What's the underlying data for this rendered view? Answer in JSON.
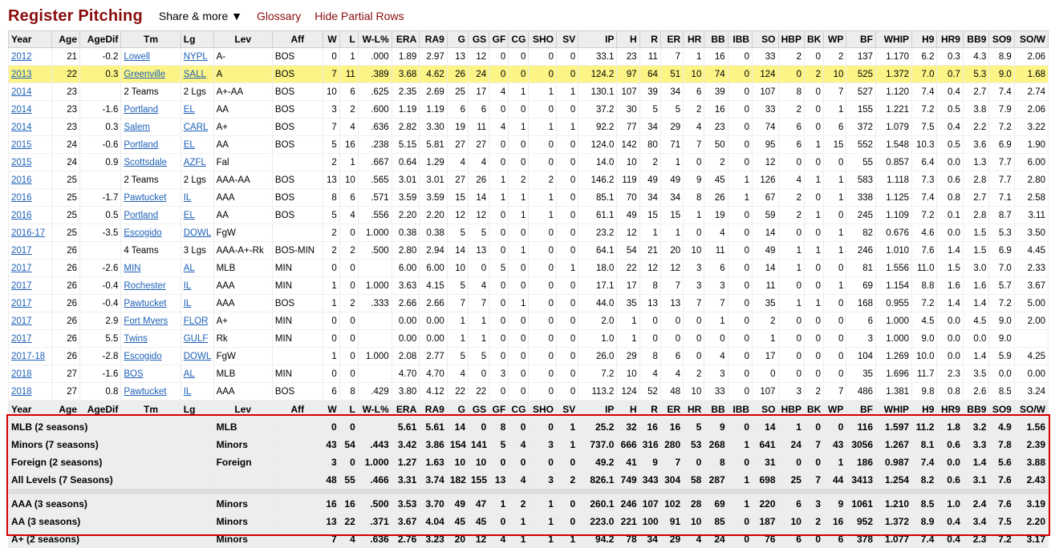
{
  "header": {
    "title": "Register Pitching",
    "share": "Share & more ▼",
    "glossary": "Glossary",
    "hide_partial": "Hide Partial Rows"
  },
  "columns": [
    "Year",
    "Age",
    "AgeDif",
    "Tm",
    "Lg",
    "Lev",
    "Aff",
    "W",
    "L",
    "W-L%",
    "ERA",
    "RA9",
    "G",
    "GS",
    "GF",
    "CG",
    "SHO",
    "SV",
    "IP",
    "H",
    "R",
    "ER",
    "HR",
    "BB",
    "IBB",
    "SO",
    "HBP",
    "BK",
    "WP",
    "BF",
    "WHIP",
    "H9",
    "HR9",
    "BB9",
    "SO9",
    "SO/W"
  ],
  "rows": [
    [
      "2012",
      "21",
      "-0.2",
      "Lowell",
      "NYPL",
      "A-",
      "BOS",
      "0",
      "1",
      ".000",
      "1.89",
      "2.97",
      "13",
      "12",
      "0",
      "0",
      "0",
      "0",
      "33.1",
      "23",
      "11",
      "7",
      "1",
      "16",
      "0",
      "33",
      "2",
      "0",
      "2",
      "137",
      "1.170",
      "6.2",
      "0.3",
      "4.3",
      "8.9",
      "2.06"
    ],
    [
      "2013",
      "22",
      "0.3",
      "Greenville",
      "SALL",
      "A",
      "BOS",
      "7",
      "11",
      ".389",
      "3.68",
      "4.62",
      "26",
      "24",
      "0",
      "0",
      "0",
      "0",
      "124.2",
      "97",
      "64",
      "51",
      "10",
      "74",
      "0",
      "124",
      "0",
      "2",
      "10",
      "525",
      "1.372",
      "7.0",
      "0.7",
      "5.3",
      "9.0",
      "1.68"
    ],
    [
      "2014",
      "23",
      "",
      "2 Teams",
      "2 Lgs",
      "A+-AA",
      "BOS",
      "10",
      "6",
      ".625",
      "2.35",
      "2.69",
      "25",
      "17",
      "4",
      "1",
      "1",
      "1",
      "130.1",
      "107",
      "39",
      "34",
      "6",
      "39",
      "0",
      "107",
      "8",
      "0",
      "7",
      "527",
      "1.120",
      "7.4",
      "0.4",
      "2.7",
      "7.4",
      "2.74"
    ],
    [
      "2014",
      "23",
      "-1.6",
      "Portland",
      "EL",
      "AA",
      "BOS",
      "3",
      "2",
      ".600",
      "1.19",
      "1.19",
      "6",
      "6",
      "0",
      "0",
      "0",
      "0",
      "37.2",
      "30",
      "5",
      "5",
      "2",
      "16",
      "0",
      "33",
      "2",
      "0",
      "1",
      "155",
      "1.221",
      "7.2",
      "0.5",
      "3.8",
      "7.9",
      "2.06"
    ],
    [
      "2014",
      "23",
      "0.3",
      "Salem",
      "CARL",
      "A+",
      "BOS",
      "7",
      "4",
      ".636",
      "2.82",
      "3.30",
      "19",
      "11",
      "4",
      "1",
      "1",
      "1",
      "92.2",
      "77",
      "34",
      "29",
      "4",
      "23",
      "0",
      "74",
      "6",
      "0",
      "6",
      "372",
      "1.079",
      "7.5",
      "0.4",
      "2.2",
      "7.2",
      "3.22"
    ],
    [
      "2015",
      "24",
      "-0.6",
      "Portland",
      "EL",
      "AA",
      "BOS",
      "5",
      "16",
      ".238",
      "5.15",
      "5.81",
      "27",
      "27",
      "0",
      "0",
      "0",
      "0",
      "124.0",
      "142",
      "80",
      "71",
      "7",
      "50",
      "0",
      "95",
      "6",
      "1",
      "15",
      "552",
      "1.548",
      "10.3",
      "0.5",
      "3.6",
      "6.9",
      "1.90"
    ],
    [
      "2015",
      "24",
      "0.9",
      "Scottsdale",
      "AZFL",
      "Fal",
      "",
      "2",
      "1",
      ".667",
      "0.64",
      "1.29",
      "4",
      "4",
      "0",
      "0",
      "0",
      "0",
      "14.0",
      "10",
      "2",
      "1",
      "0",
      "2",
      "0",
      "12",
      "0",
      "0",
      "0",
      "55",
      "0.857",
      "6.4",
      "0.0",
      "1.3",
      "7.7",
      "6.00"
    ],
    [
      "2016",
      "25",
      "",
      "2 Teams",
      "2 Lgs",
      "AAA-AA",
      "BOS",
      "13",
      "10",
      ".565",
      "3.01",
      "3.01",
      "27",
      "26",
      "1",
      "2",
      "2",
      "0",
      "146.2",
      "119",
      "49",
      "49",
      "9",
      "45",
      "1",
      "126",
      "4",
      "1",
      "1",
      "583",
      "1.118",
      "7.3",
      "0.6",
      "2.8",
      "7.7",
      "2.80"
    ],
    [
      "2016",
      "25",
      "-1.7",
      "Pawtucket",
      "IL",
      "AAA",
      "BOS",
      "8",
      "6",
      ".571",
      "3.59",
      "3.59",
      "15",
      "14",
      "1",
      "1",
      "1",
      "0",
      "85.1",
      "70",
      "34",
      "34",
      "8",
      "26",
      "1",
      "67",
      "2",
      "0",
      "1",
      "338",
      "1.125",
      "7.4",
      "0.8",
      "2.7",
      "7.1",
      "2.58"
    ],
    [
      "2016",
      "25",
      "0.5",
      "Portland",
      "EL",
      "AA",
      "BOS",
      "5",
      "4",
      ".556",
      "2.20",
      "2.20",
      "12",
      "12",
      "0",
      "1",
      "1",
      "0",
      "61.1",
      "49",
      "15",
      "15",
      "1",
      "19",
      "0",
      "59",
      "2",
      "1",
      "0",
      "245",
      "1.109",
      "7.2",
      "0.1",
      "2.8",
      "8.7",
      "3.11"
    ],
    [
      "2016-17",
      "25",
      "-3.5",
      "Escogido",
      "DOWL",
      "FgW",
      "",
      "2",
      "0",
      "1.000",
      "0.38",
      "0.38",
      "5",
      "5",
      "0",
      "0",
      "0",
      "0",
      "23.2",
      "12",
      "1",
      "1",
      "0",
      "4",
      "0",
      "14",
      "0",
      "0",
      "1",
      "82",
      "0.676",
      "4.6",
      "0.0",
      "1.5",
      "5.3",
      "3.50"
    ],
    [
      "2017",
      "26",
      "",
      "4 Teams",
      "3 Lgs",
      "AAA-A+-Rk",
      "BOS-MIN",
      "2",
      "2",
      ".500",
      "2.80",
      "2.94",
      "14",
      "13",
      "0",
      "1",
      "0",
      "0",
      "64.1",
      "54",
      "21",
      "20",
      "10",
      "11",
      "0",
      "49",
      "1",
      "1",
      "1",
      "246",
      "1.010",
      "7.6",
      "1.4",
      "1.5",
      "6.9",
      "4.45"
    ],
    [
      "2017",
      "26",
      "-2.6",
      "MIN",
      "AL",
      "MLB",
      "MIN",
      "0",
      "0",
      "",
      "6.00",
      "6.00",
      "10",
      "0",
      "5",
      "0",
      "0",
      "1",
      "18.0",
      "22",
      "12",
      "12",
      "3",
      "6",
      "0",
      "14",
      "1",
      "0",
      "0",
      "81",
      "1.556",
      "11.0",
      "1.5",
      "3.0",
      "7.0",
      "2.33"
    ],
    [
      "2017",
      "26",
      "-0.4",
      "Rochester",
      "IL",
      "AAA",
      "MIN",
      "1",
      "0",
      "1.000",
      "3.63",
      "4.15",
      "5",
      "4",
      "0",
      "0",
      "0",
      "0",
      "17.1",
      "17",
      "8",
      "7",
      "3",
      "3",
      "0",
      "11",
      "0",
      "0",
      "1",
      "69",
      "1.154",
      "8.8",
      "1.6",
      "1.6",
      "5.7",
      "3.67"
    ],
    [
      "2017",
      "26",
      "-0.4",
      "Pawtucket",
      "IL",
      "AAA",
      "BOS",
      "1",
      "2",
      ".333",
      "2.66",
      "2.66",
      "7",
      "7",
      "0",
      "1",
      "0",
      "0",
      "44.0",
      "35",
      "13",
      "13",
      "7",
      "7",
      "0",
      "35",
      "1",
      "1",
      "0",
      "168",
      "0.955",
      "7.2",
      "1.4",
      "1.4",
      "7.2",
      "5.00"
    ],
    [
      "2017",
      "26",
      "2.9",
      "Fort Myers",
      "FLOR",
      "A+",
      "MIN",
      "0",
      "0",
      "",
      "0.00",
      "0.00",
      "1",
      "1",
      "0",
      "0",
      "0",
      "0",
      "2.0",
      "1",
      "0",
      "0",
      "0",
      "1",
      "0",
      "2",
      "0",
      "0",
      "0",
      "6",
      "1.000",
      "4.5",
      "0.0",
      "4.5",
      "9.0",
      "2.00"
    ],
    [
      "2017",
      "26",
      "5.5",
      "Twins",
      "GULF",
      "Rk",
      "MIN",
      "0",
      "0",
      "",
      "0.00",
      "0.00",
      "1",
      "1",
      "0",
      "0",
      "0",
      "0",
      "1.0",
      "1",
      "0",
      "0",
      "0",
      "0",
      "0",
      "1",
      "0",
      "0",
      "0",
      "3",
      "1.000",
      "9.0",
      "0.0",
      "0.0",
      "9.0",
      ""
    ],
    [
      "2017-18",
      "26",
      "-2.8",
      "Escogido",
      "DOWL",
      "FgW",
      "",
      "1",
      "0",
      "1.000",
      "2.08",
      "2.77",
      "5",
      "5",
      "0",
      "0",
      "0",
      "0",
      "26.0",
      "29",
      "8",
      "6",
      "0",
      "4",
      "0",
      "17",
      "0",
      "0",
      "0",
      "104",
      "1.269",
      "10.0",
      "0.0",
      "1.4",
      "5.9",
      "4.25"
    ],
    [
      "2018",
      "27",
      "-1.6",
      "BOS",
      "AL",
      "MLB",
      "MIN",
      "0",
      "0",
      "",
      "4.70",
      "4.70",
      "4",
      "0",
      "3",
      "0",
      "0",
      "0",
      "7.2",
      "10",
      "4",
      "4",
      "2",
      "3",
      "0",
      "0",
      "0",
      "0",
      "0",
      "35",
      "1.696",
      "11.7",
      "2.3",
      "3.5",
      "0.0",
      "0.00"
    ],
    [
      "2018",
      "27",
      "0.8",
      "Pawtucket",
      "IL",
      "AAA",
      "BOS",
      "6",
      "8",
      ".429",
      "3.80",
      "4.12",
      "22",
      "22",
      "0",
      "0",
      "0",
      "0",
      "113.2",
      "124",
      "52",
      "48",
      "10",
      "33",
      "0",
      "107",
      "3",
      "2",
      "7",
      "486",
      "1.381",
      "9.8",
      "0.8",
      "2.6",
      "8.5",
      "3.24"
    ]
  ],
  "totals": [
    [
      "MLB (2 seasons)",
      "MLB",
      "0",
      "0",
      "",
      "5.61",
      "5.61",
      "14",
      "0",
      "8",
      "0",
      "0",
      "1",
      "25.2",
      "32",
      "16",
      "16",
      "5",
      "9",
      "0",
      "14",
      "1",
      "0",
      "0",
      "116",
      "1.597",
      "11.2",
      "1.8",
      "3.2",
      "4.9",
      "1.56"
    ],
    [
      "Minors (7 seasons)",
      "Minors",
      "43",
      "54",
      ".443",
      "3.42",
      "3.86",
      "154",
      "141",
      "5",
      "4",
      "3",
      "1",
      "737.0",
      "666",
      "316",
      "280",
      "53",
      "268",
      "1",
      "641",
      "24",
      "7",
      "43",
      "3056",
      "1.267",
      "8.1",
      "0.6",
      "3.3",
      "7.8",
      "2.39"
    ],
    [
      "Foreign (2 seasons)",
      "Foreign",
      "3",
      "0",
      "1.000",
      "1.27",
      "1.63",
      "10",
      "10",
      "0",
      "0",
      "0",
      "0",
      "49.2",
      "41",
      "9",
      "7",
      "0",
      "8",
      "0",
      "31",
      "0",
      "0",
      "1",
      "186",
      "0.987",
      "7.4",
      "0.0",
      "1.4",
      "5.6",
      "3.88"
    ],
    [
      "All Levels (7 Seasons)",
      "",
      "48",
      "55",
      ".466",
      "3.31",
      "3.74",
      "182",
      "155",
      "13",
      "4",
      "3",
      "2",
      "826.1",
      "749",
      "343",
      "304",
      "58",
      "287",
      "1",
      "698",
      "25",
      "7",
      "44",
      "3413",
      "1.254",
      "8.2",
      "0.6",
      "3.1",
      "7.6",
      "2.43"
    ],
    [
      "AAA (3 seasons)",
      "Minors",
      "16",
      "16",
      ".500",
      "3.53",
      "3.70",
      "49",
      "47",
      "1",
      "2",
      "1",
      "0",
      "260.1",
      "246",
      "107",
      "102",
      "28",
      "69",
      "1",
      "220",
      "6",
      "3",
      "9",
      "1061",
      "1.210",
      "8.5",
      "1.0",
      "2.4",
      "7.6",
      "3.19"
    ],
    [
      "AA (3 seasons)",
      "Minors",
      "13",
      "22",
      ".371",
      "3.67",
      "4.04",
      "45",
      "45",
      "0",
      "1",
      "1",
      "0",
      "223.0",
      "221",
      "100",
      "91",
      "10",
      "85",
      "0",
      "187",
      "10",
      "2",
      "16",
      "952",
      "1.372",
      "8.9",
      "0.4",
      "3.4",
      "7.5",
      "2.20"
    ],
    [
      "A+ (2 seasons)",
      "Minors",
      "7",
      "4",
      ".636",
      "2.76",
      "3.23",
      "20",
      "12",
      "4",
      "1",
      "1",
      "1",
      "94.2",
      "78",
      "34",
      "29",
      "4",
      "24",
      "0",
      "76",
      "6",
      "0",
      "6",
      "378",
      "1.077",
      "7.4",
      "0.4",
      "2.3",
      "7.2",
      "3.17"
    ]
  ],
  "highlight_row": 1,
  "colors": {
    "title": "#8a0c0c",
    "link": "#1d60b8",
    "highlight": "#fcf485",
    "box": "#d40000"
  }
}
